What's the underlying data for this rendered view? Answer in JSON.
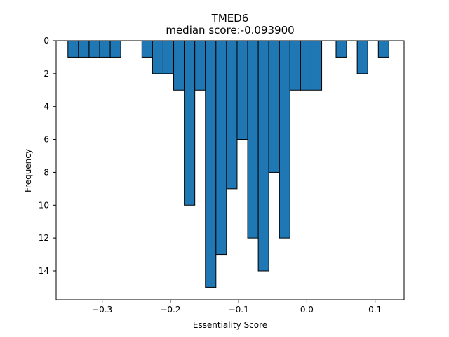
{
  "chart_data": {
    "type": "bar",
    "title": "TMED6",
    "subtitle": "median score:-0.093900",
    "xlabel": "Essentiality Score",
    "ylabel": "Frequency",
    "y_inverted": true,
    "xlim": [
      -0.3675,
      0.1425
    ],
    "ylim": [
      0,
      15.75
    ],
    "xticks": [
      -0.3,
      -0.2,
      -0.1,
      0.0,
      0.1
    ],
    "xtick_labels": [
      "−0.3",
      "−0.2",
      "−0.1",
      "0.0",
      "0.1"
    ],
    "yticks": [
      0,
      2,
      4,
      6,
      8,
      10,
      12,
      14
    ],
    "yticks_labels": [
      "0",
      "2",
      "4",
      "6",
      "8",
      "10",
      "12",
      "14"
    ],
    "bin_width": 0.0155,
    "bar_color": "#1f77b4",
    "edge_color": "#000000",
    "bins": [
      {
        "x": -0.3425,
        "value": 1
      },
      {
        "x": -0.327,
        "value": 1
      },
      {
        "x": -0.3115,
        "value": 1
      },
      {
        "x": -0.296,
        "value": 1
      },
      {
        "x": -0.2805,
        "value": 1
      },
      {
        "x": -0.234,
        "value": 1
      },
      {
        "x": -0.2185,
        "value": 2
      },
      {
        "x": -0.203,
        "value": 2
      },
      {
        "x": -0.1875,
        "value": 3
      },
      {
        "x": -0.172,
        "value": 10
      },
      {
        "x": -0.1565,
        "value": 3
      },
      {
        "x": -0.141,
        "value": 15
      },
      {
        "x": -0.1255,
        "value": 13
      },
      {
        "x": -0.11,
        "value": 9
      },
      {
        "x": -0.0945,
        "value": 6
      },
      {
        "x": -0.079,
        "value": 12
      },
      {
        "x": -0.0635,
        "value": 14
      },
      {
        "x": -0.048,
        "value": 8
      },
      {
        "x": -0.0325,
        "value": 12
      },
      {
        "x": -0.017,
        "value": 3
      },
      {
        "x": -0.0015,
        "value": 3
      },
      {
        "x": 0.014,
        "value": 3
      },
      {
        "x": 0.0505,
        "value": 1
      },
      {
        "x": 0.0815,
        "value": 2
      },
      {
        "x": 0.1125,
        "value": 1
      }
    ]
  }
}
